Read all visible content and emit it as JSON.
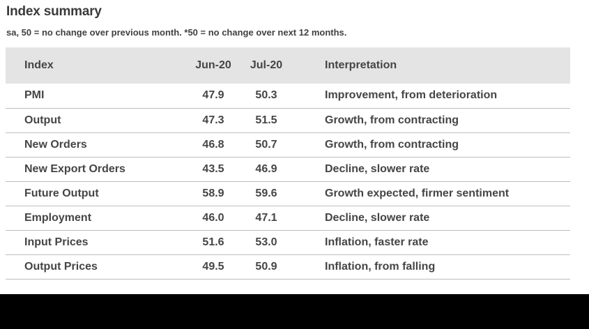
{
  "title": "Index summary",
  "subtitle": "sa, 50 = no change over previous month. *50 = no change over next 12 months.",
  "table": {
    "columns": [
      "Index",
      "Jun-20",
      "Jul-20",
      "Interpretation"
    ],
    "rows": [
      [
        "PMI",
        "47.9",
        "50.3",
        "Improvement, from deterioration"
      ],
      [
        "Output",
        "47.3",
        "51.5",
        "Growth, from contracting"
      ],
      [
        "New Orders",
        "46.8",
        "50.7",
        "Growth, from contracting"
      ],
      [
        "New Export Orders",
        "43.5",
        "46.9",
        "Decline, slower rate"
      ],
      [
        "Future Output",
        "58.9",
        "59.6",
        "Growth expected, firmer sentiment"
      ],
      [
        "Employment",
        "46.0",
        "47.1",
        "Decline, slower rate"
      ],
      [
        "Input Prices",
        "51.6",
        "53.0",
        "Inflation, faster rate"
      ],
      [
        "Output Prices",
        "49.5",
        "50.9",
        "Inflation, from falling"
      ]
    ]
  },
  "chart_data": {
    "type": "table",
    "title": "Index summary",
    "subtitle": "sa, 50 = no change over previous month. *50 = no change over next 12 months.",
    "categories": [
      "PMI",
      "Output",
      "New Orders",
      "New Export Orders",
      "Future Output",
      "Employment",
      "Input Prices",
      "Output Prices"
    ],
    "series": [
      {
        "name": "Jun-20",
        "values": [
          47.9,
          47.3,
          46.8,
          43.5,
          58.9,
          46.0,
          51.6,
          49.5
        ]
      },
      {
        "name": "Jul-20",
        "values": [
          50.3,
          51.5,
          50.7,
          46.9,
          59.6,
          47.1,
          53.0,
          50.9
        ]
      }
    ],
    "interpretations": [
      "Improvement, from deterioration",
      "Growth, from contracting",
      "Growth, from contracting",
      "Decline, slower rate",
      "Growth expected, firmer sentiment",
      "Decline, slower rate",
      "Inflation, faster rate",
      "Inflation, from falling"
    ]
  },
  "colors": {
    "header_bg": "#e4e4e4",
    "text": "#454545",
    "divider": "#bdbdbd",
    "bottom_bar": "#000000",
    "background": "#ffffff"
  }
}
